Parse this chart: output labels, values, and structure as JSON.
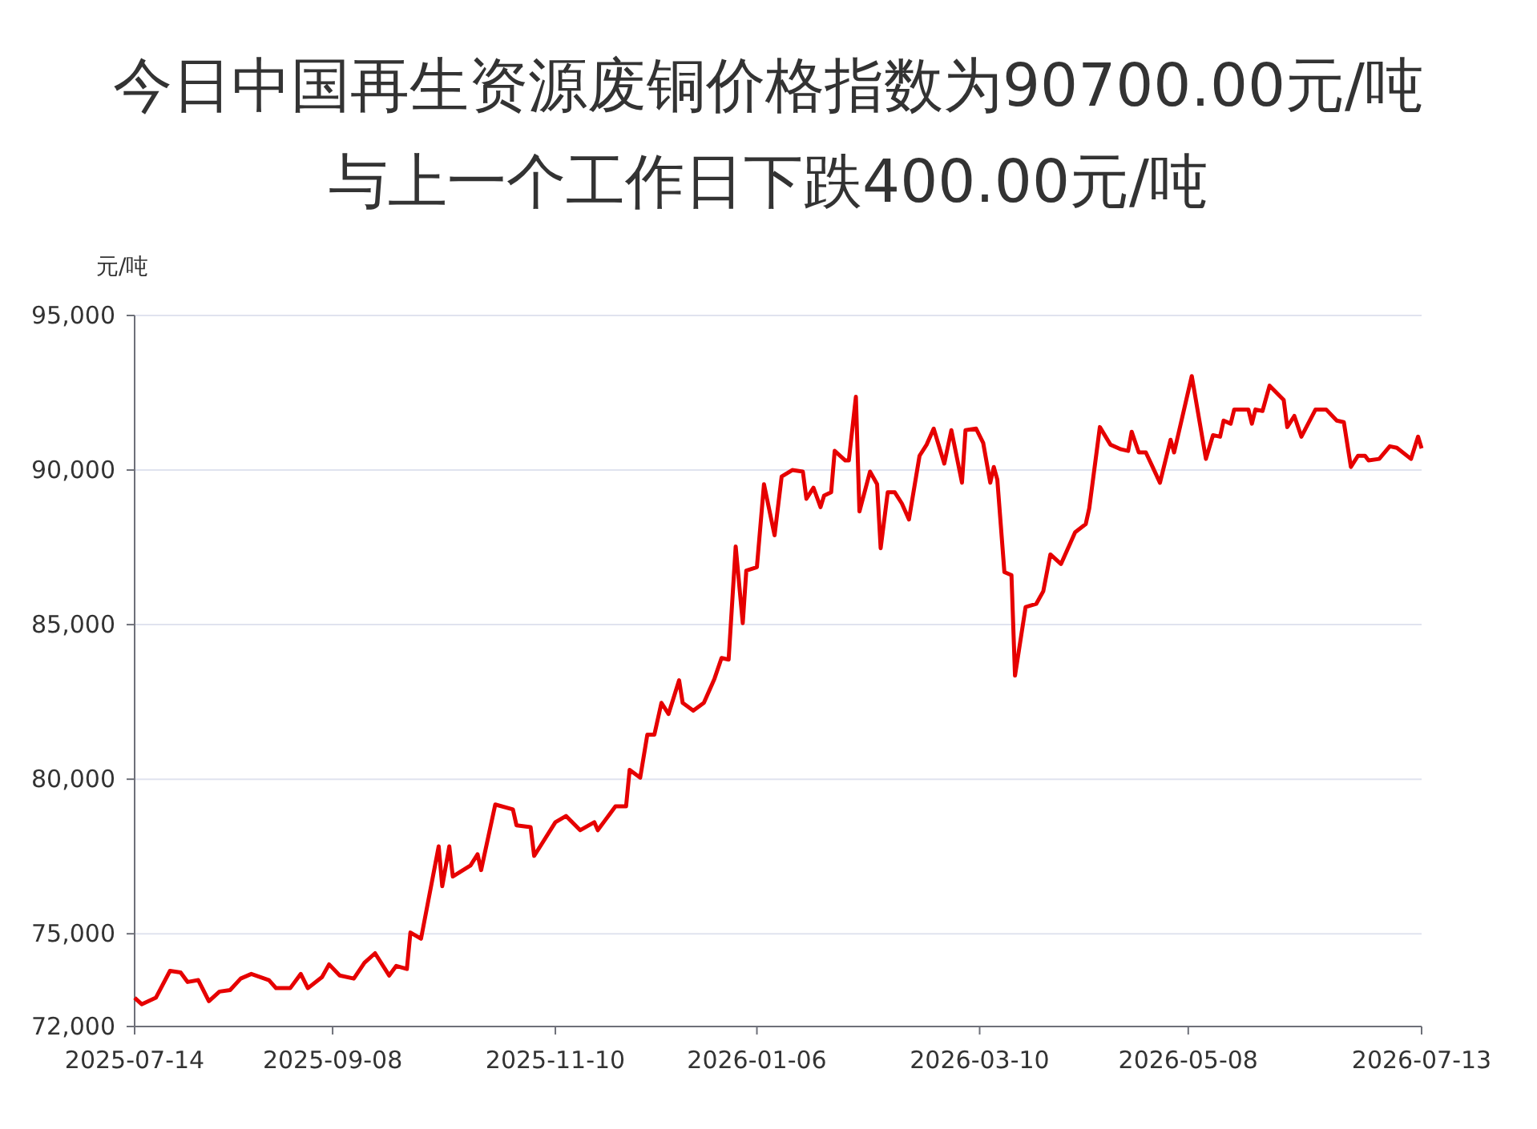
{
  "chart_data": {
    "type": "line",
    "title": "今日中国再生资源废铜价格指数为90700.00元/吨",
    "subtitle": "与上一个工作日下跌400.00元/吨",
    "ylabel": "元/吨",
    "xlim": [
      "2025-07-14",
      "2026-07-13"
    ],
    "xticks": [
      "2025-07-14",
      "2025-09-08",
      "2025-11-10",
      "2026-01-06",
      "2026-03-10",
      "2026-05-08",
      "2026-07-13"
    ],
    "ylim": [
      72000,
      95000
    ],
    "yticks": [
      {
        "value": 72000,
        "label": "72,000"
      },
      {
        "value": 75000,
        "label": "75,000"
      },
      {
        "value": 80000,
        "label": "80,000"
      },
      {
        "value": 85000,
        "label": "85,000"
      },
      {
        "value": 90000,
        "label": "90,000"
      },
      {
        "value": 95000,
        "label": "95,000"
      }
    ],
    "grid": "y",
    "marker": "none",
    "line_style": "solid",
    "series": [
      {
        "color": "#e60000",
        "x": [
          "2025-07-14",
          "2025-07-16",
          "2025-07-20",
          "2025-07-24",
          "2025-07-27",
          "2025-07-29",
          "2025-08-01",
          "2025-08-04",
          "2025-08-07",
          "2025-08-10",
          "2025-08-13",
          "2025-08-16",
          "2025-08-21",
          "2025-08-23",
          "2025-08-27",
          "2025-08-30",
          "2025-09-01",
          "2025-09-05",
          "2025-09-07",
          "2025-09-10",
          "2025-09-14",
          "2025-09-17",
          "2025-09-20",
          "2025-09-24",
          "2025-09-26",
          "2025-09-29",
          "2025-09-30",
          "2025-10-03",
          "2025-10-08",
          "2025-10-09",
          "2025-10-11",
          "2025-10-12",
          "2025-10-17",
          "2025-10-19",
          "2025-10-20",
          "2025-10-24",
          "2025-10-29",
          "2025-10-30",
          "2025-11-03",
          "2025-11-04",
          "2025-11-06",
          "2025-11-10",
          "2025-11-13",
          "2025-11-17",
          "2025-11-21",
          "2025-11-22",
          "2025-11-24",
          "2025-11-27",
          "2025-11-30",
          "2025-12-01",
          "2025-12-04",
          "2025-12-06",
          "2025-12-08",
          "2025-12-10",
          "2025-12-12",
          "2025-12-15",
          "2025-12-16",
          "2025-12-19",
          "2025-12-22",
          "2025-12-25",
          "2025-12-27",
          "2025-12-29",
          "2025-12-31",
          "2026-01-02",
          "2026-01-03",
          "2026-01-06",
          "2026-01-08",
          "2026-01-11",
          "2026-01-13",
          "2026-01-16",
          "2026-01-19",
          "2026-01-20",
          "2026-01-22",
          "2026-01-24",
          "2026-01-25",
          "2026-01-27",
          "2026-01-28",
          "2026-01-31",
          "2026-02-01",
          "2026-02-03",
          "2026-02-04",
          "2026-02-07",
          "2026-02-09",
          "2026-02-10",
          "2026-02-12",
          "2026-02-14",
          "2026-02-16",
          "2026-02-18",
          "2026-02-21",
          "2026-02-23",
          "2026-02-25",
          "2026-02-28",
          "2026-03-02",
          "2026-03-05",
          "2026-03-06",
          "2026-03-09",
          "2026-03-11",
          "2026-03-13",
          "2026-03-14",
          "2026-03-15",
          "2026-03-17",
          "2026-03-19",
          "2026-03-20",
          "2026-03-23",
          "2026-03-26",
          "2026-03-28",
          "2026-03-30",
          "2026-04-02",
          "2026-04-06",
          "2026-04-09",
          "2026-04-10",
          "2026-04-13",
          "2026-04-16",
          "2026-04-19",
          "2026-04-21",
          "2026-04-22",
          "2026-04-24",
          "2026-04-26",
          "2026-04-30",
          "2026-05-03",
          "2026-05-04",
          "2026-05-09",
          "2026-05-13",
          "2026-05-15",
          "2026-05-17",
          "2026-05-18",
          "2026-05-20",
          "2026-05-21",
          "2026-05-25",
          "2026-05-26",
          "2026-05-27",
          "2026-05-29",
          "2026-05-31",
          "2026-06-04",
          "2026-06-05",
          "2026-06-07",
          "2026-06-09",
          "2026-06-13",
          "2026-06-16",
          "2026-06-19",
          "2026-06-21",
          "2026-06-23",
          "2026-06-25",
          "2026-06-27",
          "2026-06-28",
          "2026-07-01",
          "2026-07-04",
          "2026-07-06",
          "2026-07-10",
          "2026-07-12",
          "2026-07-13"
        ],
        "values": [
          72930,
          72720,
          72930,
          73800,
          73750,
          73440,
          73500,
          72820,
          73130,
          73180,
          73550,
          73700,
          73500,
          73240,
          73240,
          73700,
          73240,
          73600,
          74010,
          73650,
          73550,
          74060,
          74370,
          73650,
          73960,
          73860,
          75040,
          74840,
          77830,
          76540,
          77830,
          76850,
          77210,
          77570,
          77060,
          79180,
          79020,
          78510,
          78450,
          77520,
          77880,
          78610,
          78810,
          78350,
          78610,
          78350,
          78660,
          79120,
          79120,
          80300,
          80050,
          81440,
          81440,
          82470,
          82110,
          83200,
          82470,
          82220,
          82470,
          83250,
          83920,
          83870,
          87530,
          85050,
          86750,
          86860,
          89540,
          87890,
          89790,
          90000,
          89950,
          89070,
          89430,
          88800,
          89170,
          89280,
          90620,
          90310,
          90310,
          92370,
          88660,
          89950,
          89540,
          87470,
          89280,
          89280,
          88920,
          88400,
          90460,
          90820,
          91340,
          90210,
          91290,
          89590,
          91290,
          91340,
          90880,
          89590,
          90100,
          89690,
          86700,
          86600,
          83350,
          85570,
          85670,
          86080,
          87270,
          86960,
          87990,
          88250,
          88760,
          91390,
          90820,
          90670,
          90620,
          91240,
          90570,
          90570,
          89590,
          90980,
          90570,
          93040,
          90360,
          91130,
          91080,
          91600,
          91500,
          91960,
          91960,
          91500,
          91960,
          91910,
          92730,
          92270,
          91390,
          91750,
          91080,
          91960,
          91960,
          91600,
          91550,
          90100,
          90460,
          90460,
          90310,
          90360,
          90770,
          90720,
          90360,
          91080,
          90700
        ]
      }
    ]
  }
}
